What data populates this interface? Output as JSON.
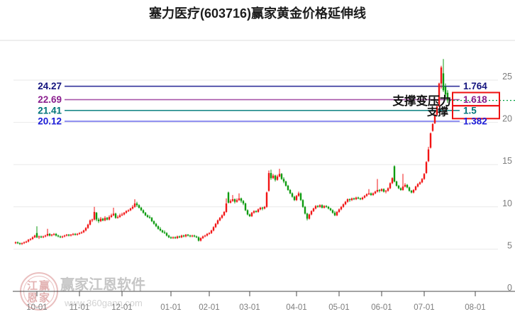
{
  "title": "塞力医疗(603716)赢家黄金价格延伸线",
  "watermark": {
    "seal_rows": [
      "江赢",
      "恩家"
    ],
    "name": "赢家江恩软件",
    "url": "www.360gann.com"
  },
  "annotations": {
    "support_becomes_resistance": "支撑变压力",
    "support": "支撑"
  },
  "chart_data": {
    "type": "candlestick",
    "title": "塞力医疗(603716)赢家黄金价格延伸线",
    "symbol": "塞力医疗",
    "code": "603716",
    "legend_position": "none",
    "grid": true,
    "y_axis": {
      "side": "right",
      "ticks": [
        0,
        5,
        10,
        15,
        20,
        25
      ],
      "range": [
        0,
        28
      ]
    },
    "x_ticks": [
      {
        "label": "10-01",
        "index": 10
      },
      {
        "label": "11-01",
        "index": 30
      },
      {
        "label": "12-01",
        "index": 50
      },
      {
        "label": "01-01",
        "index": 73
      },
      {
        "label": "02-01",
        "index": 91
      },
      {
        "label": "03-01",
        "index": 110
      },
      {
        "label": "04-01",
        "index": 132
      },
      {
        "label": "05-01",
        "index": 152
      },
      {
        "label": "06-01",
        "index": 172
      },
      {
        "label": "07-01",
        "index": 192
      },
      {
        "label": "08-01",
        "index": 216
      }
    ],
    "fib_lines": [
      {
        "price": "24.27",
        "ratio": "1.764",
        "value": 24.27,
        "color_label": "#15157f",
        "color_line": "#33339b",
        "boxed": false
      },
      {
        "price": "22.69",
        "ratio": "1.618",
        "value": 22.69,
        "color_label": "#8b1f8f",
        "color_line": "#a855aa",
        "boxed": true
      },
      {
        "price": "21.41",
        "ratio": "1.5",
        "value": 21.41,
        "color_label": "#00757a",
        "color_line": "#1d8a8a",
        "boxed": true
      },
      {
        "price": "20.12",
        "ratio": "1.382",
        "value": 20.12,
        "color_label": "#1c1cd8",
        "color_line": "#8c8cf0",
        "boxed": false
      }
    ],
    "current_price_line": {
      "value": 22.6,
      "color": "#00a040",
      "style": "dotted"
    },
    "colors": {
      "up": "#f21515",
      "down": "#0e9b10",
      "box": "#ee1111",
      "grid": "#e9e9e9",
      "axis": "#4a4a4a",
      "axis_text": "#7d7d7d",
      "annotation": "#111111"
    },
    "candles": [
      [
        5.7,
        5.9,
        5.6,
        5.8
      ],
      [
        5.8,
        5.9,
        5.6,
        5.7
      ],
      [
        5.7,
        5.8,
        5.5,
        5.6
      ],
      [
        5.6,
        5.8,
        5.5,
        5.7
      ],
      [
        5.7,
        5.9,
        5.6,
        5.8
      ],
      [
        5.8,
        6.0,
        5.7,
        5.9
      ],
      [
        5.9,
        6.2,
        5.8,
        6.1
      ],
      [
        6.1,
        6.3,
        6.0,
        6.2
      ],
      [
        6.2,
        6.5,
        6.1,
        6.4
      ],
      [
        6.4,
        6.7,
        6.3,
        6.6
      ],
      [
        6.9,
        7.7,
        6.3,
        6.4
      ],
      [
        6.4,
        6.6,
        6.2,
        6.5
      ],
      [
        6.5,
        6.6,
        6.3,
        6.4
      ],
      [
        6.4,
        6.6,
        6.3,
        6.5
      ],
      [
        6.5,
        6.7,
        6.4,
        6.6
      ],
      [
        6.6,
        7.4,
        6.5,
        6.8
      ],
      [
        6.8,
        6.9,
        6.5,
        6.6
      ],
      [
        6.6,
        6.8,
        6.5,
        6.7
      ],
      [
        6.7,
        6.9,
        6.6,
        6.8
      ],
      [
        6.8,
        6.9,
        6.5,
        6.6
      ],
      [
        6.6,
        6.7,
        6.4,
        6.5
      ],
      [
        6.5,
        6.6,
        6.3,
        6.4
      ],
      [
        6.4,
        6.6,
        6.3,
        6.5
      ],
      [
        6.5,
        6.7,
        6.4,
        6.6
      ],
      [
        6.6,
        6.8,
        6.5,
        6.7
      ],
      [
        6.7,
        6.8,
        6.5,
        6.6
      ],
      [
        6.6,
        6.8,
        6.5,
        6.7
      ],
      [
        6.7,
        6.9,
        6.6,
        6.8
      ],
      [
        6.8,
        6.9,
        6.6,
        6.7
      ],
      [
        6.7,
        6.9,
        6.6,
        6.8
      ],
      [
        6.8,
        7.0,
        6.7,
        6.9
      ],
      [
        6.9,
        7.1,
        6.8,
        7.0
      ],
      [
        7.0,
        7.3,
        6.9,
        7.2
      ],
      [
        7.2,
        7.6,
        7.1,
        7.5
      ],
      [
        7.5,
        8.0,
        7.4,
        7.9
      ],
      [
        7.9,
        8.5,
        7.8,
        8.4
      ],
      [
        8.4,
        8.6,
        8.2,
        8.5
      ],
      [
        8.5,
        10.0,
        8.4,
        9.4
      ],
      [
        9.3,
        9.4,
        8.3,
        8.5
      ],
      [
        8.5,
        8.7,
        8.1,
        8.3
      ],
      [
        8.3,
        8.8,
        8.2,
        8.6
      ],
      [
        8.6,
        8.7,
        8.3,
        8.4
      ],
      [
        8.4,
        8.9,
        8.3,
        8.7
      ],
      [
        8.7,
        8.8,
        8.4,
        8.5
      ],
      [
        8.5,
        9.0,
        8.4,
        8.8
      ],
      [
        8.8,
        9.2,
        8.7,
        9.0
      ],
      [
        9.0,
        9.9,
        8.9,
        9.2
      ],
      [
        9.2,
        9.3,
        8.6,
        8.7
      ],
      [
        8.7,
        9.0,
        8.6,
        8.8
      ],
      [
        8.8,
        9.2,
        8.7,
        9.0
      ],
      [
        9.0,
        9.3,
        8.9,
        9.1
      ],
      [
        9.1,
        9.4,
        9.0,
        9.3
      ],
      [
        9.3,
        9.6,
        9.2,
        9.5
      ],
      [
        9.5,
        9.7,
        9.4,
        9.6
      ],
      [
        9.6,
        9.9,
        9.5,
        9.8
      ],
      [
        9.8,
        10.2,
        9.7,
        10.0
      ],
      [
        10.0,
        10.9,
        9.9,
        10.4
      ],
      [
        10.4,
        10.6,
        10.0,
        10.2
      ],
      [
        10.2,
        10.3,
        9.8,
        9.9
      ],
      [
        9.9,
        10.0,
        9.5,
        9.6
      ],
      [
        9.6,
        9.7,
        9.2,
        9.3
      ],
      [
        9.3,
        9.4,
        8.9,
        9.0
      ],
      [
        9.0,
        9.1,
        8.7,
        8.8
      ],
      [
        8.8,
        9.0,
        8.6,
        8.7
      ],
      [
        8.7,
        8.8,
        8.2,
        8.3
      ],
      [
        8.3,
        8.4,
        7.9,
        8.0
      ],
      [
        8.0,
        8.1,
        7.6,
        7.7
      ],
      [
        7.7,
        7.8,
        7.3,
        7.4
      ],
      [
        7.4,
        7.6,
        7.1,
        7.2
      ],
      [
        7.2,
        7.3,
        6.9,
        7.0
      ],
      [
        7.0,
        7.2,
        6.8,
        6.9
      ],
      [
        6.9,
        7.0,
        6.5,
        6.6
      ],
      [
        6.6,
        6.7,
        6.3,
        6.4
      ],
      [
        6.4,
        6.5,
        6.2,
        6.3
      ],
      [
        6.3,
        6.5,
        6.2,
        6.4
      ],
      [
        6.4,
        6.5,
        6.2,
        6.3
      ],
      [
        6.3,
        6.6,
        6.2,
        6.5
      ],
      [
        6.5,
        6.6,
        6.3,
        6.4
      ],
      [
        6.4,
        6.7,
        6.3,
        6.6
      ],
      [
        6.6,
        6.7,
        6.4,
        6.5
      ],
      [
        6.5,
        6.8,
        6.4,
        6.7
      ],
      [
        6.7,
        6.8,
        6.5,
        6.6
      ],
      [
        6.6,
        6.7,
        6.4,
        6.5
      ],
      [
        6.5,
        6.7,
        6.4,
        6.6
      ],
      [
        6.6,
        6.7,
        6.4,
        6.5
      ],
      [
        6.5,
        6.6,
        6.3,
        6.4
      ],
      [
        6.4,
        6.5,
        5.9,
        6.0
      ],
      [
        6.0,
        6.4,
        5.9,
        6.3
      ],
      [
        6.3,
        6.6,
        6.2,
        6.5
      ],
      [
        6.5,
        6.7,
        6.4,
        6.6
      ],
      [
        6.6,
        6.9,
        6.5,
        6.8
      ],
      [
        6.8,
        7.0,
        6.7,
        6.9
      ],
      [
        6.9,
        7.3,
        6.8,
        7.2
      ],
      [
        7.2,
        7.7,
        7.1,
        7.6
      ],
      [
        7.6,
        8.1,
        7.5,
        8.0
      ],
      [
        8.0,
        8.5,
        7.9,
        8.4
      ],
      [
        8.4,
        8.8,
        8.3,
        8.7
      ],
      [
        8.7,
        9.1,
        8.6,
        9.0
      ],
      [
        9.0,
        9.5,
        8.9,
        9.4
      ],
      [
        9.4,
        11.0,
        9.3,
        10.4
      ],
      [
        11.7,
        11.8,
        10.4,
        10.5
      ],
      [
        10.5,
        10.9,
        10.4,
        10.7
      ],
      [
        10.7,
        11.4,
        10.6,
        10.9
      ],
      [
        10.9,
        11.0,
        10.4,
        10.6
      ],
      [
        10.6,
        11.0,
        10.5,
        10.8
      ],
      [
        10.8,
        11.6,
        10.7,
        11.0
      ],
      [
        11.0,
        11.1,
        10.5,
        10.7
      ],
      [
        10.7,
        10.8,
        10.2,
        10.4
      ],
      [
        10.4,
        10.5,
        9.5,
        9.6
      ],
      [
        9.6,
        9.7,
        9.0,
        9.1
      ],
      [
        9.1,
        9.2,
        8.8,
        8.9
      ],
      [
        8.9,
        9.4,
        8.8,
        9.3
      ],
      [
        9.3,
        9.6,
        9.2,
        9.5
      ],
      [
        9.5,
        9.6,
        9.3,
        9.4
      ],
      [
        9.4,
        9.8,
        9.3,
        9.7
      ],
      [
        9.7,
        10.0,
        9.6,
        9.9
      ],
      [
        9.9,
        10.0,
        9.6,
        9.8
      ],
      [
        9.8,
        10.1,
        9.7,
        10.0
      ],
      [
        10.0,
        11.8,
        9.9,
        11.7
      ],
      [
        11.9,
        14.3,
        11.8,
        14.0
      ],
      [
        14.0,
        14.4,
        13.2,
        13.4
      ],
      [
        13.4,
        13.9,
        13.3,
        13.7
      ],
      [
        13.7,
        13.8,
        13.0,
        13.2
      ],
      [
        13.2,
        13.8,
        13.1,
        13.6
      ],
      [
        13.6,
        14.5,
        13.5,
        13.9
      ],
      [
        13.9,
        14.0,
        13.2,
        13.3
      ],
      [
        13.3,
        13.5,
        12.8,
        13.0
      ],
      [
        13.0,
        13.1,
        12.4,
        12.5
      ],
      [
        12.5,
        12.6,
        11.9,
        12.0
      ],
      [
        12.0,
        12.1,
        11.5,
        11.6
      ],
      [
        11.6,
        11.7,
        11.1,
        11.2
      ],
      [
        11.2,
        11.3,
        10.7,
        10.8
      ],
      [
        10.8,
        11.4,
        10.7,
        11.3
      ],
      [
        11.3,
        11.8,
        11.2,
        11.6
      ],
      [
        11.6,
        11.7,
        10.7,
        10.8
      ],
      [
        10.8,
        10.9,
        9.9,
        10.0
      ],
      [
        10.0,
        10.1,
        9.1,
        9.2
      ],
      [
        9.2,
        9.3,
        8.4,
        8.6
      ],
      [
        8.6,
        9.2,
        8.5,
        9.1
      ],
      [
        9.1,
        9.6,
        9.0,
        9.5
      ],
      [
        9.5,
        9.9,
        9.4,
        9.8
      ],
      [
        9.8,
        10.2,
        9.7,
        10.1
      ],
      [
        10.1,
        10.2,
        9.9,
        10.0
      ],
      [
        10.0,
        10.3,
        9.9,
        10.2
      ],
      [
        10.2,
        10.3,
        9.8,
        9.9
      ],
      [
        9.9,
        10.2,
        9.8,
        10.1
      ],
      [
        10.1,
        10.2,
        9.9,
        10.0
      ],
      [
        10.0,
        10.1,
        9.7,
        9.8
      ],
      [
        9.8,
        9.9,
        9.5,
        9.6
      ],
      [
        9.6,
        9.7,
        9.2,
        9.3
      ],
      [
        9.3,
        9.5,
        8.9,
        9.0
      ],
      [
        9.0,
        9.5,
        8.9,
        9.4
      ],
      [
        9.4,
        9.8,
        9.3,
        9.7
      ],
      [
        9.7,
        10.1,
        9.6,
        10.0
      ],
      [
        10.0,
        10.4,
        9.9,
        10.3
      ],
      [
        10.3,
        10.7,
        10.2,
        10.6
      ],
      [
        10.6,
        11.0,
        10.5,
        10.9
      ],
      [
        10.9,
        11.0,
        10.6,
        10.8
      ],
      [
        10.8,
        11.1,
        10.7,
        11.0
      ],
      [
        11.0,
        11.1,
        10.8,
        10.9
      ],
      [
        10.9,
        11.2,
        10.8,
        11.1
      ],
      [
        11.1,
        11.2,
        10.9,
        11.0
      ],
      [
        11.0,
        11.1,
        10.8,
        10.9
      ],
      [
        10.9,
        11.2,
        10.8,
        11.1
      ],
      [
        11.1,
        11.4,
        11.0,
        11.3
      ],
      [
        11.3,
        11.6,
        11.2,
        11.5
      ],
      [
        11.5,
        12.1,
        11.4,
        11.6
      ],
      [
        11.6,
        11.7,
        11.3,
        11.4
      ],
      [
        11.4,
        11.7,
        11.3,
        11.6
      ],
      [
        11.6,
        11.9,
        11.5,
        11.8
      ],
      [
        11.8,
        13.3,
        11.7,
        12.0
      ],
      [
        12.0,
        12.1,
        11.7,
        11.9
      ],
      [
        11.9,
        12.2,
        11.8,
        12.1
      ],
      [
        12.1,
        12.2,
        11.7,
        11.8
      ],
      [
        11.8,
        12.0,
        11.6,
        11.9
      ],
      [
        11.9,
        12.3,
        11.8,
        12.2
      ],
      [
        12.2,
        12.9,
        12.1,
        12.8
      ],
      [
        12.8,
        13.5,
        12.7,
        13.4
      ],
      [
        14.8,
        14.9,
        12.9,
        13.0
      ],
      [
        13.0,
        13.1,
        12.4,
        12.5
      ],
      [
        12.5,
        12.6,
        12.1,
        12.2
      ],
      [
        12.2,
        12.3,
        11.9,
        12.0
      ],
      [
        12.0,
        13.9,
        11.9,
        12.4
      ],
      [
        12.4,
        12.8,
        12.3,
        12.6
      ],
      [
        12.6,
        12.7,
        12.2,
        12.3
      ],
      [
        12.3,
        12.4,
        11.8,
        11.9
      ],
      [
        11.9,
        12.0,
        11.6,
        11.7
      ],
      [
        11.7,
        12.1,
        11.6,
        12.0
      ],
      [
        12.0,
        12.5,
        11.9,
        12.4
      ],
      [
        12.4,
        12.8,
        12.3,
        12.7
      ],
      [
        12.7,
        13.0,
        12.6,
        12.9
      ],
      [
        12.9,
        13.4,
        12.8,
        13.3
      ],
      [
        13.3,
        14.0,
        13.2,
        13.9
      ],
      [
        14.0,
        15.4,
        13.9,
        15.3
      ],
      [
        15.4,
        17.1,
        15.3,
        16.8
      ],
      [
        17.0,
        18.8,
        16.9,
        18.7
      ],
      [
        19.0,
        19.9,
        18.9,
        19.8
      ],
      [
        19.9,
        21.0,
        19.8,
        20.9
      ],
      [
        20.9,
        22.0,
        20.8,
        21.9
      ],
      [
        21.9,
        24.7,
        21.8,
        24.6
      ],
      [
        24.6,
        26.7,
        24.0,
        26.5
      ],
      [
        25.8,
        27.5,
        23.6,
        23.8
      ],
      [
        24.2,
        24.6,
        23.0,
        23.3
      ],
      [
        23.5,
        23.8,
        22.3,
        22.6
      ]
    ]
  }
}
